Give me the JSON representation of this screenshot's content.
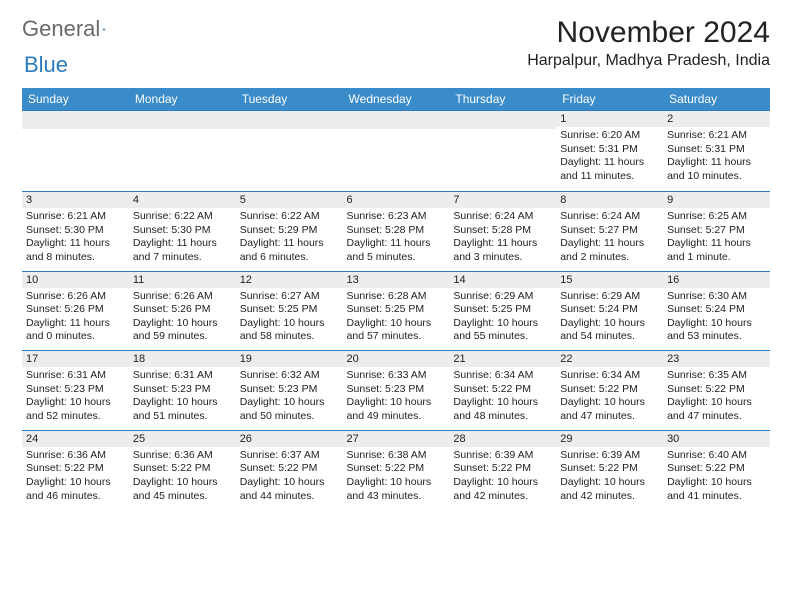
{
  "logo": {
    "part1": "General",
    "part2": "Blue"
  },
  "title": "November 2024",
  "location": "Harpalpur, Madhya Pradesh, India",
  "colors": {
    "header_bg": "#3a8bca",
    "header_text": "#ffffff",
    "row_sep": "#2f7bbf",
    "daynum_bg": "#eceded",
    "text": "#222222",
    "logo_gray": "#6a6a6a",
    "logo_blue": "#2f7bbf",
    "page_bg": "#ffffff"
  },
  "typography": {
    "title_fontsize": 30,
    "location_fontsize": 16,
    "dayheader_fontsize": 12,
    "cell_fontsize": 10.5
  },
  "day_headers": [
    "Sunday",
    "Monday",
    "Tuesday",
    "Wednesday",
    "Thursday",
    "Friday",
    "Saturday"
  ],
  "weeks": [
    [
      null,
      null,
      null,
      null,
      null,
      {
        "n": "1",
        "sunrise": "6:20 AM",
        "sunset": "5:31 PM",
        "daylight": "11 hours and 11 minutes."
      },
      {
        "n": "2",
        "sunrise": "6:21 AM",
        "sunset": "5:31 PM",
        "daylight": "11 hours and 10 minutes."
      }
    ],
    [
      {
        "n": "3",
        "sunrise": "6:21 AM",
        "sunset": "5:30 PM",
        "daylight": "11 hours and 8 minutes."
      },
      {
        "n": "4",
        "sunrise": "6:22 AM",
        "sunset": "5:30 PM",
        "daylight": "11 hours and 7 minutes."
      },
      {
        "n": "5",
        "sunrise": "6:22 AM",
        "sunset": "5:29 PM",
        "daylight": "11 hours and 6 minutes."
      },
      {
        "n": "6",
        "sunrise": "6:23 AM",
        "sunset": "5:28 PM",
        "daylight": "11 hours and 5 minutes."
      },
      {
        "n": "7",
        "sunrise": "6:24 AM",
        "sunset": "5:28 PM",
        "daylight": "11 hours and 3 minutes."
      },
      {
        "n": "8",
        "sunrise": "6:24 AM",
        "sunset": "5:27 PM",
        "daylight": "11 hours and 2 minutes."
      },
      {
        "n": "9",
        "sunrise": "6:25 AM",
        "sunset": "5:27 PM",
        "daylight": "11 hours and 1 minute."
      }
    ],
    [
      {
        "n": "10",
        "sunrise": "6:26 AM",
        "sunset": "5:26 PM",
        "daylight": "11 hours and 0 minutes."
      },
      {
        "n": "11",
        "sunrise": "6:26 AM",
        "sunset": "5:26 PM",
        "daylight": "10 hours and 59 minutes."
      },
      {
        "n": "12",
        "sunrise": "6:27 AM",
        "sunset": "5:25 PM",
        "daylight": "10 hours and 58 minutes."
      },
      {
        "n": "13",
        "sunrise": "6:28 AM",
        "sunset": "5:25 PM",
        "daylight": "10 hours and 57 minutes."
      },
      {
        "n": "14",
        "sunrise": "6:29 AM",
        "sunset": "5:25 PM",
        "daylight": "10 hours and 55 minutes."
      },
      {
        "n": "15",
        "sunrise": "6:29 AM",
        "sunset": "5:24 PM",
        "daylight": "10 hours and 54 minutes."
      },
      {
        "n": "16",
        "sunrise": "6:30 AM",
        "sunset": "5:24 PM",
        "daylight": "10 hours and 53 minutes."
      }
    ],
    [
      {
        "n": "17",
        "sunrise": "6:31 AM",
        "sunset": "5:23 PM",
        "daylight": "10 hours and 52 minutes."
      },
      {
        "n": "18",
        "sunrise": "6:31 AM",
        "sunset": "5:23 PM",
        "daylight": "10 hours and 51 minutes."
      },
      {
        "n": "19",
        "sunrise": "6:32 AM",
        "sunset": "5:23 PM",
        "daylight": "10 hours and 50 minutes."
      },
      {
        "n": "20",
        "sunrise": "6:33 AM",
        "sunset": "5:23 PM",
        "daylight": "10 hours and 49 minutes."
      },
      {
        "n": "21",
        "sunrise": "6:34 AM",
        "sunset": "5:22 PM",
        "daylight": "10 hours and 48 minutes."
      },
      {
        "n": "22",
        "sunrise": "6:34 AM",
        "sunset": "5:22 PM",
        "daylight": "10 hours and 47 minutes."
      },
      {
        "n": "23",
        "sunrise": "6:35 AM",
        "sunset": "5:22 PM",
        "daylight": "10 hours and 47 minutes."
      }
    ],
    [
      {
        "n": "24",
        "sunrise": "6:36 AM",
        "sunset": "5:22 PM",
        "daylight": "10 hours and 46 minutes."
      },
      {
        "n": "25",
        "sunrise": "6:36 AM",
        "sunset": "5:22 PM",
        "daylight": "10 hours and 45 minutes."
      },
      {
        "n": "26",
        "sunrise": "6:37 AM",
        "sunset": "5:22 PM",
        "daylight": "10 hours and 44 minutes."
      },
      {
        "n": "27",
        "sunrise": "6:38 AM",
        "sunset": "5:22 PM",
        "daylight": "10 hours and 43 minutes."
      },
      {
        "n": "28",
        "sunrise": "6:39 AM",
        "sunset": "5:22 PM",
        "daylight": "10 hours and 42 minutes."
      },
      {
        "n": "29",
        "sunrise": "6:39 AM",
        "sunset": "5:22 PM",
        "daylight": "10 hours and 42 minutes."
      },
      {
        "n": "30",
        "sunrise": "6:40 AM",
        "sunset": "5:22 PM",
        "daylight": "10 hours and 41 minutes."
      }
    ]
  ],
  "labels": {
    "sunrise": "Sunrise:",
    "sunset": "Sunset:",
    "daylight": "Daylight:"
  }
}
